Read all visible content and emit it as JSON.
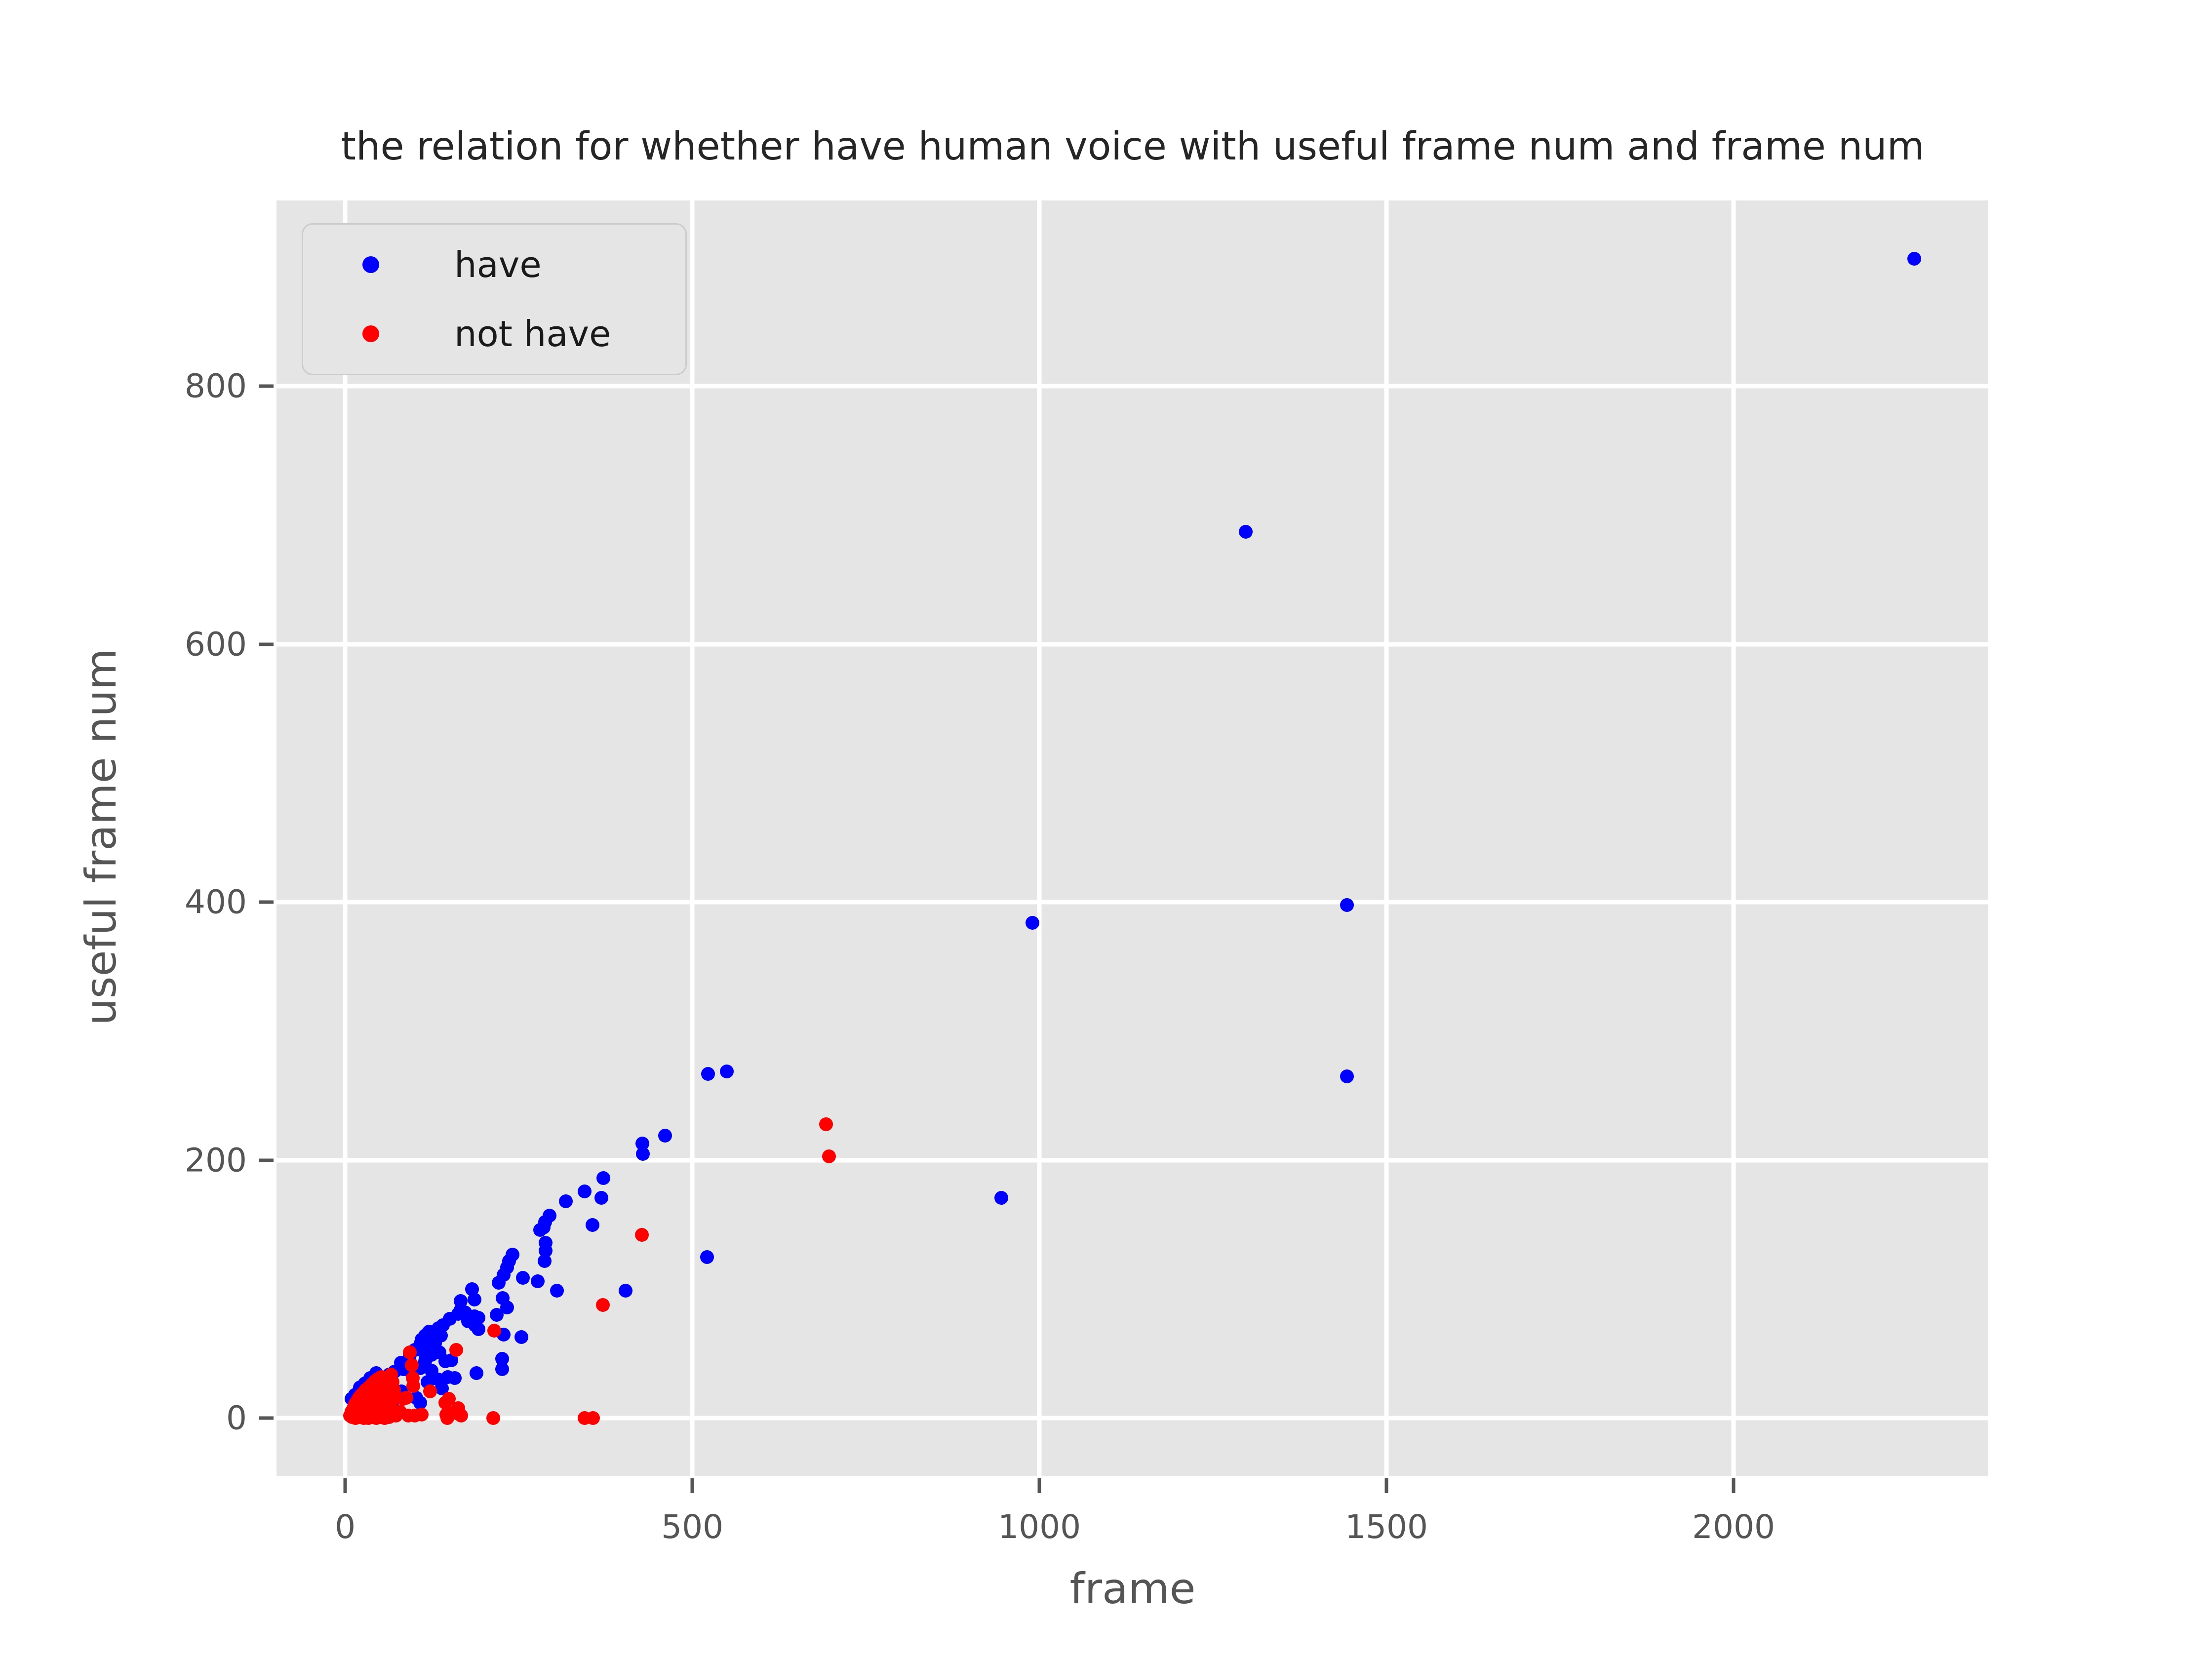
{
  "title": "the relation for whether have human voice with useful frame num and frame num",
  "colors": {
    "plot_background": "#e5e5e5",
    "figure_background": "#ffffff",
    "grid": "#ffffff",
    "tick_text": "#555555",
    "title_text": "#262626",
    "have": "#0000ff",
    "not_have": "#ff0000"
  },
  "chart_data": {
    "type": "scatter",
    "title": "the relation for whether have human voice with useful frame num and frame num",
    "xlabel": "frame",
    "ylabel": "useful frame num",
    "xlim": [
      -99,
      2367
    ],
    "ylim": [
      -45,
      944
    ],
    "x_ticks": [
      0,
      500,
      1000,
      1500,
      2000
    ],
    "y_ticks": [
      0,
      200,
      400,
      600,
      800
    ],
    "grid": true,
    "legend_position": "upper left",
    "series": [
      {
        "name": "have",
        "color": "#0000ff",
        "points": [
          [
            2260,
            899
          ],
          [
            1297,
            687
          ],
          [
            1443,
            398
          ],
          [
            1443,
            265
          ],
          [
            990,
            384
          ],
          [
            945,
            171
          ],
          [
            550,
            269
          ],
          [
            523,
            267
          ],
          [
            521,
            125
          ],
          [
            461,
            219
          ],
          [
            428,
            213
          ],
          [
            429,
            205
          ],
          [
            404,
            99
          ],
          [
            372,
            186
          ],
          [
            369,
            171
          ],
          [
            345,
            176
          ],
          [
            356,
            150
          ],
          [
            318,
            168
          ],
          [
            305,
            99
          ],
          [
            294,
            157
          ],
          [
            288,
            152
          ],
          [
            289,
            136
          ],
          [
            289,
            130
          ],
          [
            286,
            148
          ],
          [
            281,
            146
          ],
          [
            287,
            122
          ],
          [
            277,
            106
          ],
          [
            256,
            109
          ],
          [
            254,
            63
          ],
          [
            241,
            127
          ],
          [
            236,
            122
          ],
          [
            233,
            117
          ],
          [
            228,
            111
          ],
          [
            228,
            65
          ],
          [
            227,
            93
          ],
          [
            233,
            86
          ],
          [
            226,
            46
          ],
          [
            226,
            38
          ],
          [
            221,
            105
          ],
          [
            218,
            80
          ],
          [
            192,
            78
          ],
          [
            192,
            69
          ],
          [
            189,
            35
          ],
          [
            187,
            72
          ],
          [
            186,
            92
          ],
          [
            186,
            79
          ],
          [
            183,
            100
          ],
          [
            177,
            75
          ],
          [
            173,
            82
          ],
          [
            166,
            91
          ],
          [
            166,
            84
          ],
          [
            163,
            81
          ],
          [
            158,
            31
          ],
          [
            153,
            45
          ],
          [
            151,
            77
          ],
          [
            148,
            32
          ],
          [
            144,
            44
          ],
          [
            141,
            72
          ],
          [
            139,
            23
          ],
          [
            138,
            64
          ],
          [
            136,
            51
          ],
          [
            134,
            70
          ],
          [
            134,
            30
          ],
          [
            129,
            58
          ],
          [
            124,
            49
          ],
          [
            124,
            37
          ],
          [
            122,
            58
          ],
          [
            121,
            67
          ],
          [
            119,
            28
          ],
          [
            118,
            55
          ],
          [
            116,
            46
          ],
          [
            115,
            64
          ],
          [
            115,
            44
          ],
          [
            110,
            61
          ],
          [
            110,
            53
          ],
          [
            109,
            58
          ],
          [
            108,
            39
          ],
          [
            108,
            12
          ],
          [
            102,
            16
          ],
          [
            100,
            53
          ],
          [
            96,
            35
          ],
          [
            94,
            43
          ],
          [
            93,
            49
          ],
          [
            84,
            38
          ],
          [
            81,
            21
          ],
          [
            80,
            43
          ],
          [
            75,
            16
          ],
          [
            71,
            36
          ],
          [
            63,
            34
          ],
          [
            55,
            31
          ],
          [
            54,
            30
          ],
          [
            50,
            26
          ],
          [
            45,
            35
          ],
          [
            41,
            23
          ],
          [
            36,
            31
          ],
          [
            35,
            20
          ],
          [
            29,
            17
          ],
          [
            28,
            27
          ],
          [
            26,
            14
          ],
          [
            21,
            24
          ],
          [
            21,
            12
          ],
          [
            14,
            18
          ],
          [
            9,
            15
          ]
        ]
      },
      {
        "name": "not have",
        "color": "#ff0000",
        "points": [
          [
            693,
            228
          ],
          [
            697,
            203
          ],
          [
            427,
            142
          ],
          [
            371,
            88
          ],
          [
            357,
            0
          ],
          [
            345,
            0
          ],
          [
            215,
            68
          ],
          [
            213,
            0
          ],
          [
            160,
            53
          ],
          [
            167,
            2
          ],
          [
            165,
            3
          ],
          [
            163,
            8
          ],
          [
            154,
            4
          ],
          [
            149,
            15
          ],
          [
            147,
            0
          ],
          [
            146,
            3
          ],
          [
            144,
            12
          ],
          [
            122,
            21
          ],
          [
            110,
            3
          ],
          [
            100,
            2
          ],
          [
            98,
            25
          ],
          [
            97,
            31
          ],
          [
            96,
            41
          ],
          [
            93,
            51
          ],
          [
            91,
            2
          ],
          [
            88,
            16
          ],
          [
            84,
            15
          ],
          [
            79,
            5
          ],
          [
            73,
            2
          ],
          [
            72,
            16
          ],
          [
            70,
            22
          ],
          [
            69,
            6
          ],
          [
            68,
            28
          ],
          [
            66,
            34
          ],
          [
            65,
            10
          ],
          [
            64,
            18
          ],
          [
            63,
            1
          ],
          [
            62,
            24
          ],
          [
            61,
            4
          ],
          [
            60,
            30
          ],
          [
            58,
            14
          ],
          [
            57,
            8
          ],
          [
            57,
            0
          ],
          [
            56,
            20
          ],
          [
            54,
            26
          ],
          [
            53,
            6
          ],
          [
            52,
            32
          ],
          [
            51,
            1
          ],
          [
            50,
            12
          ],
          [
            49,
            4
          ],
          [
            48,
            18
          ],
          [
            47,
            24
          ],
          [
            46,
            30
          ],
          [
            45,
            10
          ],
          [
            45,
            0
          ],
          [
            44,
            16
          ],
          [
            43,
            22
          ],
          [
            42,
            28
          ],
          [
            41,
            8
          ],
          [
            40,
            14
          ],
          [
            39,
            20
          ],
          [
            39,
            1
          ],
          [
            38,
            26
          ],
          [
            37,
            6
          ],
          [
            36,
            12
          ],
          [
            35,
            18
          ],
          [
            34,
            24
          ],
          [
            33,
            4
          ],
          [
            33,
            0
          ],
          [
            32,
            10
          ],
          [
            31,
            16
          ],
          [
            30,
            22
          ],
          [
            29,
            8
          ],
          [
            28,
            14
          ],
          [
            27,
            20
          ],
          [
            27,
            0
          ],
          [
            26,
            1
          ],
          [
            25,
            6
          ],
          [
            24,
            12
          ],
          [
            23,
            18
          ],
          [
            22,
            4
          ],
          [
            21,
            10
          ],
          [
            21,
            1
          ],
          [
            20,
            16
          ],
          [
            19,
            3
          ],
          [
            18,
            8
          ],
          [
            17,
            13
          ],
          [
            16,
            1
          ],
          [
            15,
            6
          ],
          [
            15,
            0
          ],
          [
            14,
            11
          ],
          [
            13,
            3
          ],
          [
            12,
            8
          ],
          [
            10,
            1
          ],
          [
            9,
            5
          ],
          [
            7,
            2
          ]
        ]
      }
    ]
  }
}
